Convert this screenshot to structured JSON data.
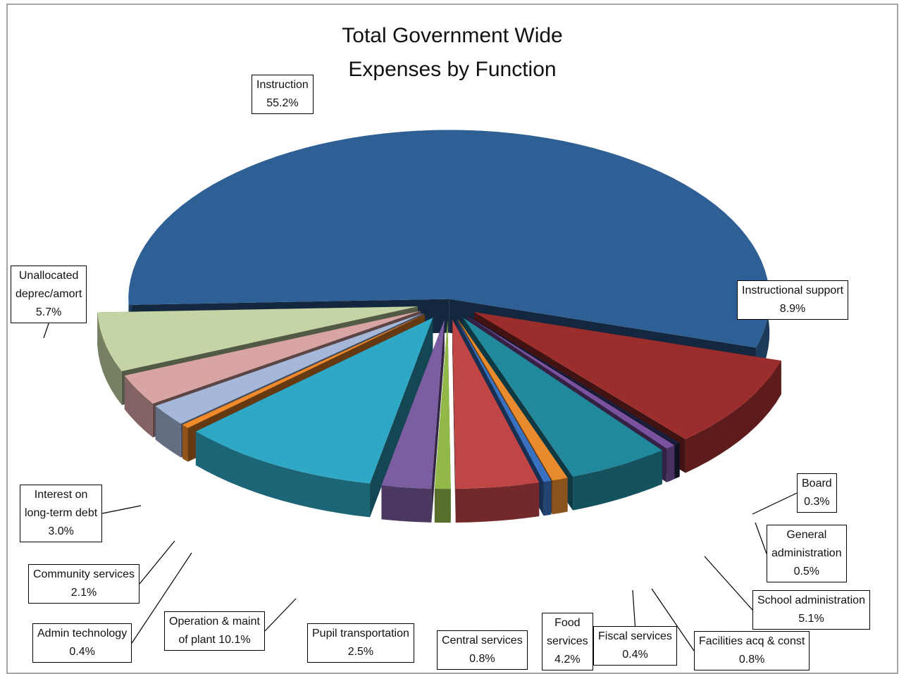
{
  "chart_data": {
    "type": "pie",
    "variant": "3d-exploded",
    "title_lines": [
      "Total Government Wide",
      "Expenses by Function"
    ],
    "slices": [
      {
        "name": "Instruction",
        "name_lines": [
          "Instruction"
        ],
        "value": 55.2,
        "label": "55.2%",
        "color": "#2e6096"
      },
      {
        "name": "Instructional support",
        "name_lines": [
          "Instructional support"
        ],
        "value": 8.9,
        "label": "8.9%",
        "color": "#9c2d2d"
      },
      {
        "name": "Board",
        "name_lines": [
          "Board"
        ],
        "value": 0.3,
        "label": "0.3%",
        "color": "#1b1e3a"
      },
      {
        "name": "General administration",
        "name_lines": [
          "General",
          "administration"
        ],
        "value": 0.5,
        "label": "0.5%",
        "color": "#7a52a0"
      },
      {
        "name": "School administration",
        "name_lines": [
          "School administration"
        ],
        "value": 5.1,
        "label": "5.1%",
        "color": "#22889c"
      },
      {
        "name": "Facilities acq & const",
        "name_lines": [
          "Facilities acq & const"
        ],
        "value": 0.8,
        "label": "0.8%",
        "color": "#e88a2e"
      },
      {
        "name": "Fiscal services",
        "name_lines": [
          "Fiscal services"
        ],
        "value": 0.4,
        "label": "0.4%",
        "color": "#3a70c0"
      },
      {
        "name": "Food services",
        "name_lines": [
          "Food",
          "services"
        ],
        "value": 4.2,
        "label": "4.2%",
        "color": "#c04545"
      },
      {
        "name": "Central services",
        "name_lines": [
          "Central services"
        ],
        "value": 0.8,
        "label": "0.8%",
        "color": "#92b84a"
      },
      {
        "name": "Pupil transportation",
        "name_lines": [
          "Pupil transportation"
        ],
        "value": 2.5,
        "label": "2.5%",
        "color": "#7b5ea2"
      },
      {
        "name": "Operation & maint of plant",
        "name_lines": [
          "Operation & maint",
          "of plant 10.1%"
        ],
        "value": 10.1,
        "label": "",
        "color": "#2fa8c6"
      },
      {
        "name": "Admin technology",
        "name_lines": [
          "Admin technology"
        ],
        "value": 0.4,
        "label": "0.4%",
        "color": "#f08a2a"
      },
      {
        "name": "Community services",
        "name_lines": [
          "Community services"
        ],
        "value": 2.1,
        "label": "2.1%",
        "color": "#a6b8da"
      },
      {
        "name": "Interest on long-term debt",
        "name_lines": [
          "Interest on",
          "long-term debt"
        ],
        "value": 3.0,
        "label": "3.0%",
        "color": "#d8a4a4"
      },
      {
        "name": "Unallocated deprec/amort",
        "name_lines": [
          "Unallocated",
          "deprec/amort"
        ],
        "value": 5.7,
        "label": "5.7%",
        "color": "#c4d4a4"
      }
    ]
  }
}
